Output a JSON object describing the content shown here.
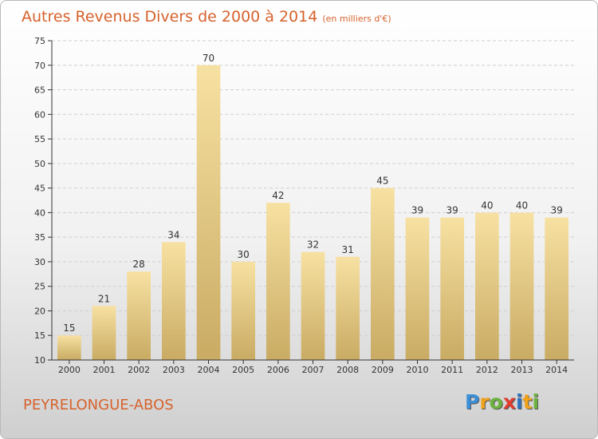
{
  "title": "Autres Revenus Divers de 2000 à 2014",
  "unit_note": "(en milliers d'€)",
  "commune": "PEYRELONGUE-ABOS",
  "logo": {
    "letters": [
      "P",
      "r",
      "o",
      "x",
      "i",
      "t",
      "i"
    ],
    "colors": [
      "#3b8fd6",
      "#f0a21a",
      "#6db33f",
      "#e03c31",
      "#2f74c0",
      "#f0a21a",
      "#6db33f"
    ]
  },
  "colors": {
    "title": "#d6622c",
    "bar_top": "#f7e1a2",
    "bar_bottom": "#c9ab63",
    "grid": "#d0d0d0",
    "axis": "#333333"
  },
  "chart_data": {
    "type": "bar",
    "categories": [
      "2000",
      "2001",
      "2002",
      "2003",
      "2004",
      "2005",
      "2006",
      "2007",
      "2008",
      "2009",
      "2010",
      "2011",
      "2012",
      "2013",
      "2014"
    ],
    "values": [
      15,
      21,
      28,
      34,
      70,
      30,
      42,
      32,
      31,
      45,
      39,
      39,
      40,
      40,
      39
    ],
    "title": "Autres Revenus Divers de 2000 à 2014",
    "xlabel": "",
    "ylabel": "",
    "ylim": [
      10,
      75
    ],
    "yticks": [
      10,
      15,
      20,
      25,
      30,
      35,
      40,
      45,
      50,
      55,
      60,
      65,
      70,
      75
    ],
    "grid": "horizontal-dashed",
    "legend": "none"
  }
}
